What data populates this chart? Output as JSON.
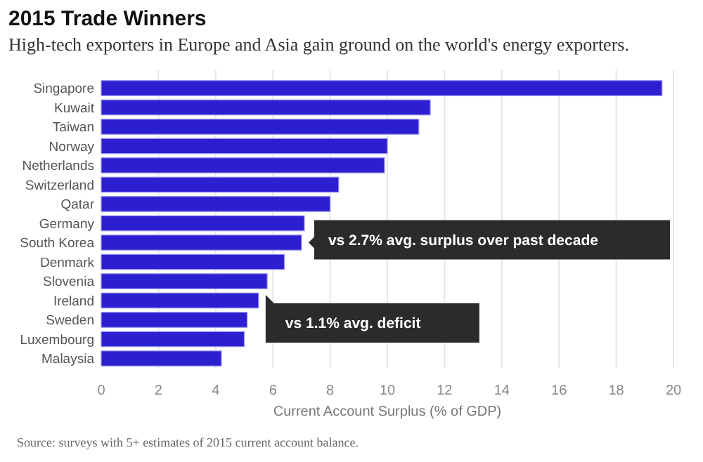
{
  "chart_data": {
    "type": "bar",
    "orientation": "horizontal",
    "title": "2015 Trade Winners",
    "subtitle": "High-tech exporters in Europe and Asia gain ground on the world's energy exporters.",
    "categories": [
      "Singapore",
      "Kuwait",
      "Taiwan",
      "Norway",
      "Netherlands",
      "Switzerland",
      "Qatar",
      "Germany",
      "South Korea",
      "Denmark",
      "Slovenia",
      "Ireland",
      "Sweden",
      "Luxembourg",
      "Malaysia"
    ],
    "values": [
      19.6,
      11.5,
      11.1,
      10.0,
      9.9,
      8.3,
      8.0,
      7.1,
      7.0,
      6.4,
      5.8,
      5.5,
      5.1,
      5.0,
      4.2
    ],
    "color": "#2b1fcf",
    "xlabel": "Current Account Surplus (% of GDP)",
    "xlim": [
      0,
      20
    ],
    "xticks": [
      0,
      2,
      4,
      6,
      8,
      10,
      12,
      14,
      16,
      18,
      20
    ],
    "grid": "x",
    "annotations": [
      {
        "text": "vs 2.7% avg. surplus over past decade",
        "x": 7.0,
        "y": "South Korea"
      },
      {
        "text": "vs 1.1% avg. deficit",
        "x": 5.5,
        "y": "Ireland"
      },
      "Source: surveys with 5+ estimates of 2015 current account balance."
    ]
  }
}
